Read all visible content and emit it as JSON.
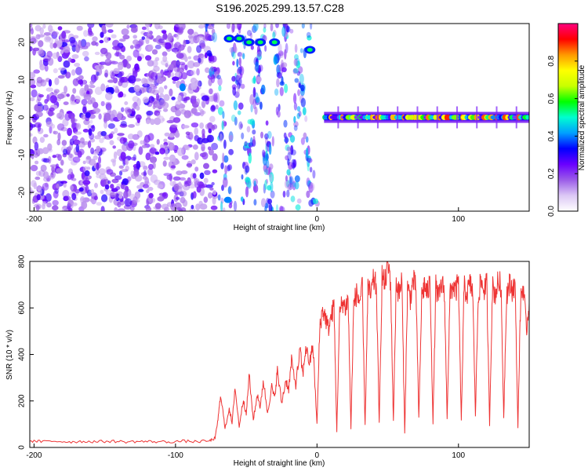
{
  "title": "S196.2025.299.13.57.C28",
  "chart_data": [
    {
      "type": "heatmap",
      "xlabel": "Height of straight line (km)",
      "ylabel": "Frequency (Hz)",
      "xlim": [
        -203,
        150
      ],
      "ylim": [
        -25,
        25
      ],
      "x_ticks": [
        -200,
        -100,
        0,
        100
      ],
      "y_ticks": [
        -20,
        -10,
        0,
        10,
        20
      ],
      "colorbar": {
        "label": "Normalized spectral amplitude",
        "range": [
          0,
          1
        ],
        "ticks": [
          0.0,
          0.2,
          0.4,
          0.6,
          0.8
        ],
        "colors": [
          "#ffffff",
          "#dcc8f5",
          "#9b5ce8",
          "#6a00ff",
          "#0000ff",
          "#00a0ff",
          "#00ffd0",
          "#00ff00",
          "#c8ff00",
          "#ffff00",
          "#ff9900",
          "#ff0000",
          "#ff007f"
        ]
      },
      "features": [
        {
          "name": "broadband noise",
          "x_range": [
            -203,
            -72
          ],
          "freq_range": [
            -25,
            25
          ],
          "amplitude_range": [
            0.0,
            0.15
          ]
        },
        {
          "name": "steady tone",
          "x_range": [
            5,
            150
          ],
          "freq": 0,
          "amplitude_range": [
            0.2,
            0.9
          ]
        },
        {
          "name": "transition streaks",
          "x_range": [
            -72,
            5
          ],
          "freq_range": [
            -25,
            25
          ],
          "amplitude_range": [
            0.0,
            0.4
          ]
        }
      ]
    },
    {
      "type": "line",
      "xlabel": "Height of straight line (km)",
      "ylabel": "SNR (10 * v/v)",
      "xlim": [
        -203,
        150
      ],
      "ylim": [
        0,
        800
      ],
      "x_ticks": [
        -200,
        -100,
        0,
        100
      ],
      "y_ticks": [
        0,
        200,
        400,
        600,
        800
      ],
      "color": "#ee3333",
      "series": [
        {
          "name": "SNR",
          "x": [
            -203,
            -195,
            -185,
            -175,
            -165,
            -155,
            -145,
            -135,
            -125,
            -115,
            -105,
            -95,
            -85,
            -76,
            -72,
            -70,
            -68,
            -65,
            -62,
            -60,
            -58,
            -55,
            -52,
            -50,
            -48,
            -45,
            -42,
            -40,
            -38,
            -35,
            -32,
            -30,
            -28,
            -25,
            -22,
            -20,
            -18,
            -15,
            -12,
            -10,
            -8,
            -5,
            -3,
            0,
            2,
            4,
            6,
            8,
            10,
            12,
            14,
            16,
            18,
            20,
            22,
            24,
            26,
            28,
            30,
            32,
            34,
            36,
            38,
            40,
            42,
            44,
            46,
            48,
            50,
            52,
            54,
            56,
            58,
            60,
            62,
            64,
            66,
            68,
            70,
            72,
            74,
            76,
            78,
            80,
            82,
            84,
            86,
            88,
            90,
            92,
            94,
            96,
            98,
            100,
            102,
            104,
            106,
            108,
            110,
            112,
            114,
            116,
            118,
            120,
            122,
            124,
            126,
            128,
            130,
            132,
            134,
            136,
            138,
            140,
            142,
            144,
            146,
            148,
            150
          ],
          "values": [
            28,
            25,
            27,
            24,
            26,
            25,
            27,
            24,
            26,
            25,
            24,
            27,
            25,
            28,
            40,
            120,
            230,
            80,
            170,
            100,
            260,
            90,
            210,
            140,
            310,
            120,
            230,
            170,
            290,
            150,
            260,
            210,
            330,
            190,
            290,
            250,
            370,
            270,
            420,
            310,
            430,
            360,
            450,
            100,
            520,
            590,
            560,
            510,
            560,
            610,
            70,
            570,
            630,
            600,
            640,
            80,
            620,
            660,
            630,
            680,
            90,
            690,
            650,
            720,
            690,
            100,
            740,
            700,
            790,
            720,
            110,
            710,
            660,
            720,
            60,
            690,
            640,
            720,
            680,
            120,
            650,
            700,
            660,
            710,
            100,
            690,
            640,
            700,
            680,
            130,
            650,
            700,
            670,
            710,
            110,
            690,
            660,
            700,
            680,
            140,
            660,
            710,
            680,
            700,
            100,
            690,
            660,
            710,
            700,
            130,
            660,
            700,
            680,
            700,
            90,
            650,
            690,
            500,
            620
          ]
        }
      ]
    }
  ]
}
